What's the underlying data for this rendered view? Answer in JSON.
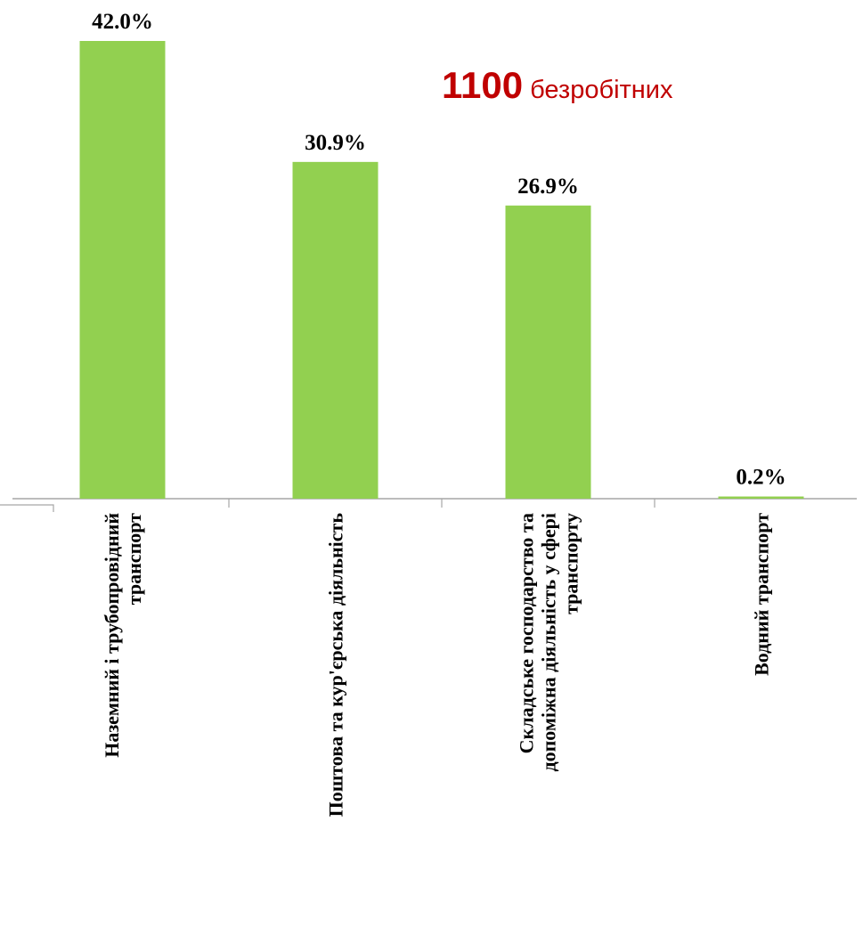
{
  "headline": {
    "number": "1100",
    "text": "безробітних"
  },
  "colors": {
    "bar": "#92d050",
    "headline": "#c00000",
    "axis": "#a6a6a6"
  },
  "chart_data": {
    "type": "bar",
    "categories": [
      [
        "Наземний і трубопровідний",
        "транспорт"
      ],
      [
        "Поштова та кур'єрська діяльність"
      ],
      [
        "Складське господарство та",
        "допоміжна діяльність у сфері",
        "транспорту"
      ],
      [
        "Водний транспорт"
      ]
    ],
    "values": [
      42.0,
      30.9,
      26.9,
      0.2
    ],
    "value_labels": [
      "42.0%",
      "30.9%",
      "26.9%",
      "0.2%"
    ],
    "ylim": [
      0,
      42.0
    ],
    "grid": false,
    "legend": "none"
  }
}
